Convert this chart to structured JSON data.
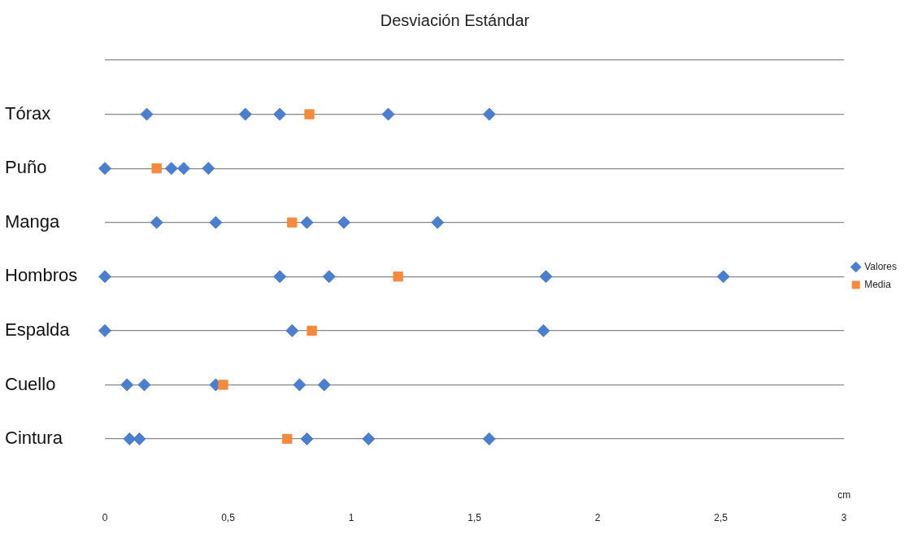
{
  "chart_data": {
    "type": "scatter",
    "title": "Desviación Estándar",
    "xlabel": "cm",
    "orientation": "horizontal",
    "categories": [
      null,
      "Tórax",
      "Puño",
      "Manga",
      "Hombros",
      "Espalda",
      "Cuello",
      "Cintura"
    ],
    "xlim": [
      0,
      3
    ],
    "xticks": [
      0,
      {
        "value": 0.5,
        "label": "0,5"
      },
      1,
      {
        "value": 1.5,
        "label": "1,5"
      },
      2,
      {
        "value": 2.5,
        "label": "2,5"
      },
      3
    ],
    "grid": "y",
    "legend": "right",
    "series": [
      {
        "name": "Valores",
        "color": "#4a7ecf",
        "marker": "diamond",
        "values": [
          null,
          0.17,
          0,
          0.21,
          0,
          0,
          0.09,
          0.1
        ]
      },
      {
        "color": "#4a7ecf",
        "marker": "diamond",
        "values": [
          null,
          0.57,
          0.27,
          0.45,
          0.71,
          0.76,
          0.16,
          0.14
        ]
      },
      {
        "color": "#4a7ecf",
        "marker": "diamond",
        "values": [
          null,
          0.71,
          0.32,
          0.82,
          0.91,
          null,
          0.45,
          0.82
        ]
      },
      {
        "color": "#4a7ecf",
        "marker": "diamond",
        "values": [
          null,
          1.15,
          0.42,
          0.97,
          1.79,
          1.78,
          0.79,
          1.07
        ]
      },
      {
        "color": "#4a7ecf",
        "marker": "diamond",
        "values": [
          null,
          1.56,
          null,
          1.35,
          2.51,
          null,
          0.89,
          1.56
        ]
      },
      {
        "name": "Media",
        "color": "#f58a3c",
        "marker": "square",
        "values": [
          null,
          0.83,
          0.21,
          0.76,
          1.19,
          0.84,
          0.48,
          0.74
        ]
      }
    ]
  }
}
